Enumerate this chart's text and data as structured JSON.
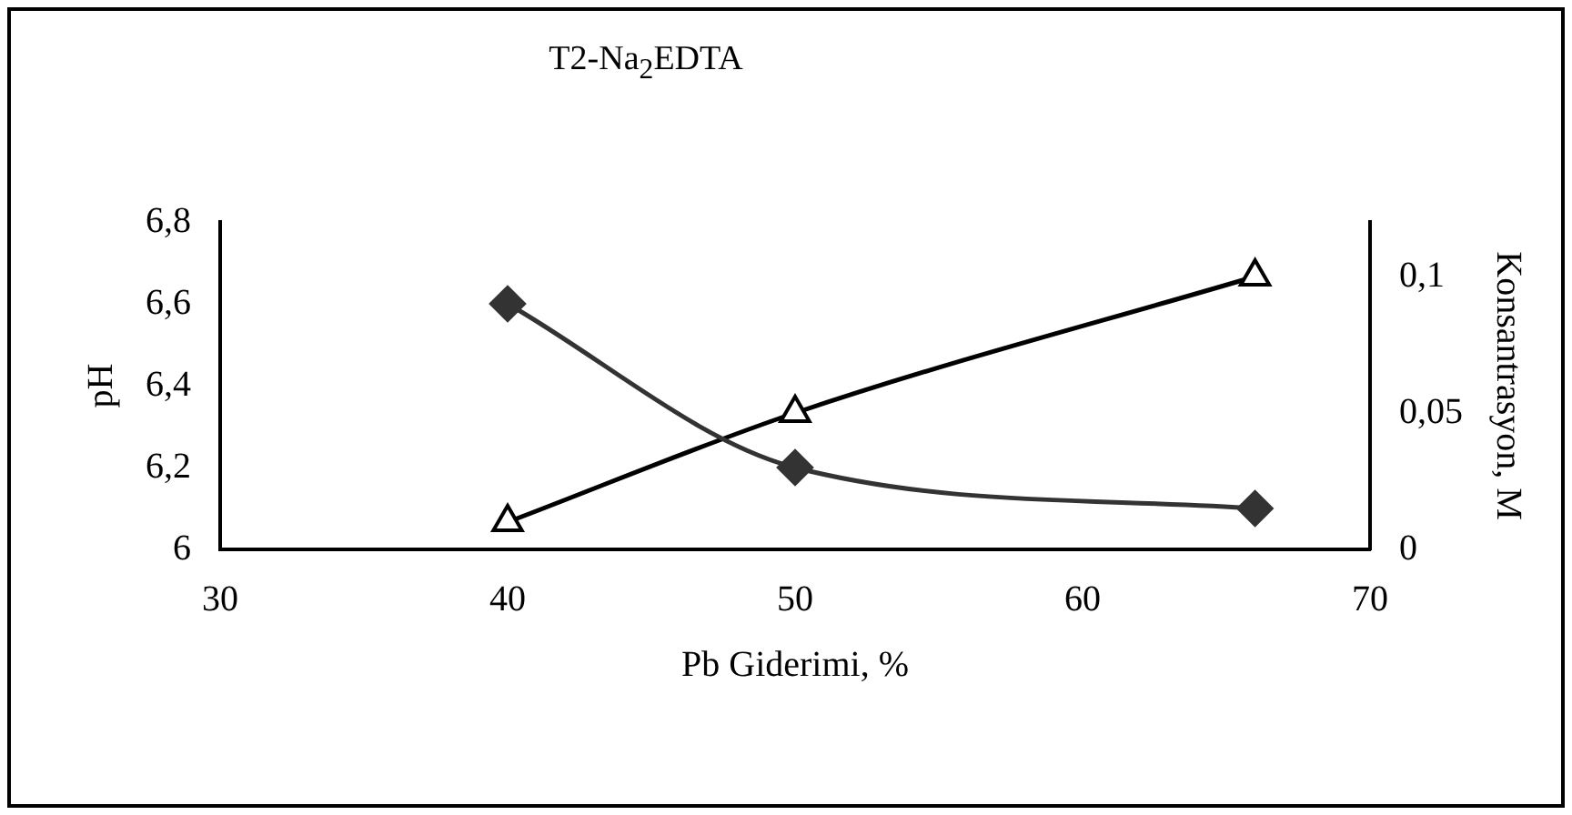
{
  "chart_data": {
    "type": "line",
    "title": "T2-Na$_{2}$EDTA",
    "xlabel": "Pb Giderimi, %",
    "ylabel": "pH",
    "y2label": "Konsantrasyon, M",
    "x": [
      40,
      50,
      66
    ],
    "series": [
      {
        "color": "#333333",
        "values": [
          6.6,
          6.2,
          6.1
        ],
        "marker": "diamond"
      },
      {
        "color": "#000000",
        "values": [
          0.01,
          0.05,
          0.1
        ],
        "marker": "triangle",
        "axis": "y2"
      }
    ],
    "xlim": [
      30,
      70
    ],
    "xticks": [
      30,
      40,
      50,
      60,
      70
    ],
    "ylim": [
      6,
      6.8
    ],
    "yticks": [
      6,
      {
        "value": 6.2,
        "label": "6,2"
      },
      {
        "value": 6.4,
        "label": "6,4"
      },
      {
        "value": 6.6,
        "label": "6,6"
      },
      {
        "value": 6.8,
        "label": "6,8"
      }
    ],
    "y2lim": [
      0,
      0.12
    ],
    "y2ticks": [
      0,
      {
        "value": 0.05,
        "label": "0,05"
      },
      {
        "value": 0.1,
        "label": "0,1"
      }
    ],
    "grid": false,
    "legend": false
  }
}
